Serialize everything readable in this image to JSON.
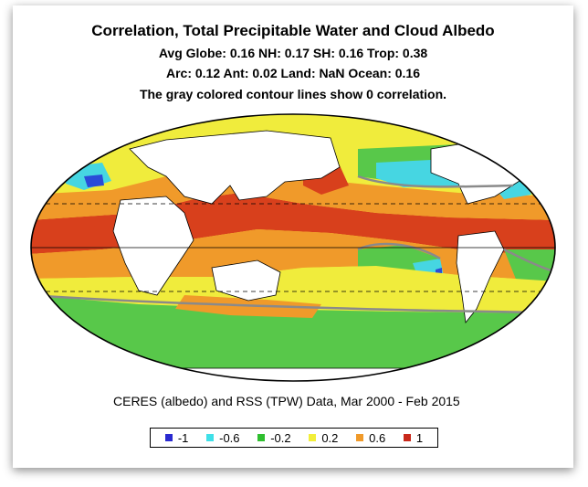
{
  "header": {
    "title": "Correlation, Total Precipitable Water and Cloud Albedo",
    "stats_line1": "Avg Globe: 0.16  NH: 0.17  SH: 0.16  Trop: 0.38",
    "stats_line2": "Arc: 0.12  Ant: 0.02  Land: NaN Ocean: 0.16",
    "note": "The gray colored contour lines show 0 correlation."
  },
  "source": "CERES (albedo) and RSS (TPW) Data, Mar 2000 - Feb 2015",
  "legend": [
    {
      "label": "-1",
      "color": "#2a2ad0"
    },
    {
      "label": "-0.6",
      "color": "#3fe0e8"
    },
    {
      "label": "-0.2",
      "color": "#2fbf2f"
    },
    {
      "label": "0.2",
      "color": "#f2ee3a"
    },
    {
      "label": "0.6",
      "color": "#f09a2a"
    },
    {
      "label": "1",
      "color": "#c8281a"
    }
  ],
  "map_colors": {
    "ocean_base": "#f0ec3c",
    "strong_positive": "#d8401c",
    "positive": "#f09a2a",
    "weak_negative": "#58c84a",
    "negative": "#46d6e2",
    "strong_negative": "#2a4bd8",
    "zero_contour": "#8a8a8a",
    "land": "#ffffff"
  }
}
